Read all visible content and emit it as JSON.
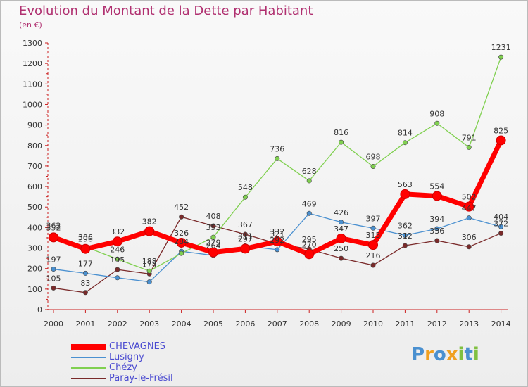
{
  "chart_data": {
    "type": "line",
    "title": "Evolution du Montant de la Dette par Habitant",
    "subtitle": "(en €)",
    "x": [
      "2000",
      "2001",
      "2002",
      "2003",
      "2004",
      "2005",
      "2006",
      "2007",
      "2008",
      "2009",
      "2010",
      "2011",
      "2012",
      "2013",
      "2014"
    ],
    "yticks": [
      0,
      100,
      200,
      300,
      400,
      500,
      600,
      700,
      800,
      900,
      1000,
      1100,
      1200,
      1300
    ],
    "ylim": [
      0,
      1300
    ],
    "grid": false,
    "legend_position": "bottom-left",
    "series": [
      {
        "name": "CHEVAGNES",
        "color": "#ff0000",
        "values": [
          352,
          296,
          332,
          382,
          326,
          279,
          297,
          332,
          270,
          347,
          315,
          563,
          554,
          502,
          825
        ]
      },
      {
        "name": "Lusigny",
        "color": "#4a90d0",
        "values": [
          197,
          177,
          155,
          135,
          284,
          264,
          311,
          292,
          469,
          426,
          397,
          362,
          394,
          447,
          404
        ]
      },
      {
        "name": "Chézy",
        "color": "#80d050",
        "values": [
          362,
          306,
          246,
          188,
          274,
          353,
          548,
          736,
          628,
          816,
          698,
          814,
          908,
          791,
          1231
        ]
      },
      {
        "name": "Paray-le-Frésil",
        "color": "#7a2a2a",
        "values": [
          105,
          83,
          195,
          174,
          452,
          408,
          367,
          321,
          295,
          250,
          216,
          312,
          336,
          306,
          372
        ]
      }
    ],
    "value_labels": [
      {
        "series": 2,
        "values": [
          362,
          306,
          246,
          188,
          null,
          353,
          548,
          736,
          628,
          816,
          698,
          814,
          908,
          791,
          1231
        ]
      },
      {
        "series": 1,
        "values": [
          197,
          177,
          null,
          null,
          284,
          264,
          311,
          292,
          469,
          426,
          397,
          362,
          394,
          447,
          404
        ]
      },
      {
        "series": 3,
        "values": [
          105,
          83,
          195,
          174,
          452,
          408,
          367,
          321,
          295,
          250,
          216,
          312,
          336,
          306,
          372
        ]
      },
      {
        "series": 0,
        "values": [
          352,
          296,
          332,
          382,
          326,
          279,
          297,
          332,
          270,
          347,
          315,
          563,
          554,
          502,
          825
        ]
      }
    ]
  },
  "brand": {
    "letters": [
      "P",
      "r",
      "o",
      "x",
      "i",
      "t",
      "i"
    ],
    "colors": [
      "#4a90d0",
      "#f0a020",
      "#4a90d0",
      "#f0a020",
      "#80c040",
      "#4a90d0",
      "#80c040"
    ]
  }
}
